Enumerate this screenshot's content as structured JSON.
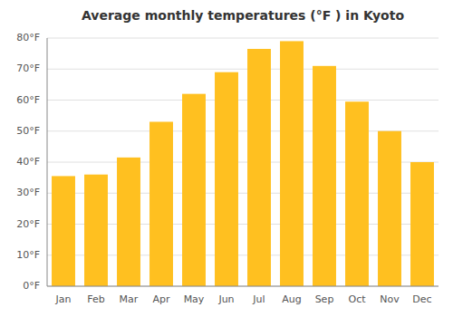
{
  "chart_data": {
    "type": "bar",
    "title": "Average monthly temperatures (°F ) in Kyoto",
    "categories": [
      "Jan",
      "Feb",
      "Mar",
      "Apr",
      "May",
      "Jun",
      "Jul",
      "Aug",
      "Sep",
      "Oct",
      "Nov",
      "Dec"
    ],
    "values": [
      35.5,
      36,
      41.5,
      53,
      62,
      69,
      76.5,
      79,
      71,
      59.5,
      50,
      40
    ],
    "color": "#FFC020",
    "ylim": [
      0,
      80
    ],
    "yticks": [
      {
        "value": 0,
        "label": "0°F"
      },
      {
        "value": 10,
        "label": "10°F"
      },
      {
        "value": 20,
        "label": "20°F"
      },
      {
        "value": 30,
        "label": "30°F"
      },
      {
        "value": 40,
        "label": "40°F"
      },
      {
        "value": 50,
        "label": "50°F"
      },
      {
        "value": 60,
        "label": "60°F"
      },
      {
        "value": 70,
        "label": "70°F"
      },
      {
        "value": 80,
        "label": "80°F"
      }
    ],
    "grid": true
  }
}
